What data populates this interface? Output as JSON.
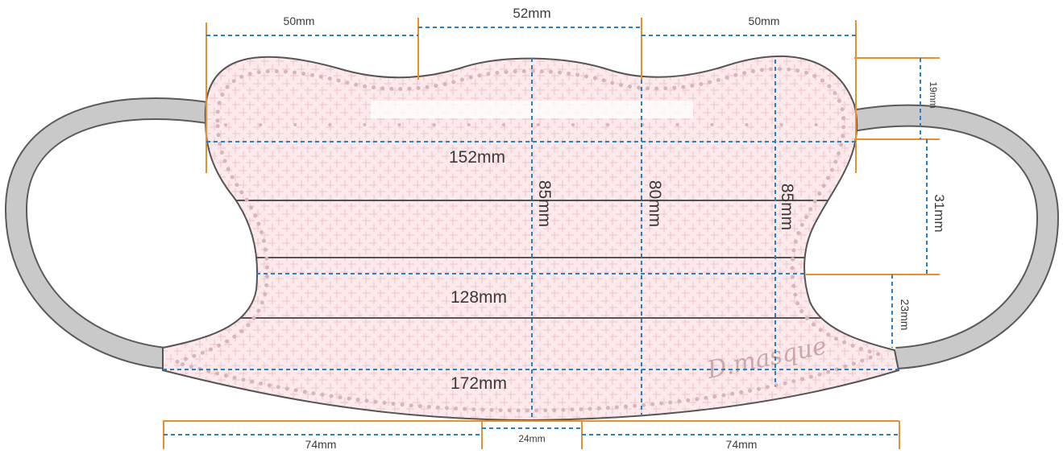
{
  "diagram": {
    "brand": "D.masque",
    "width_main": "152mm",
    "width_middle": "128mm",
    "width_bottom": "172mm",
    "height_center_left": "85mm",
    "height_center": "80mm",
    "height_center_right": "85mm",
    "top_left": "50mm",
    "top_middle": "52mm",
    "top_right": "50mm",
    "right_top": "19mm",
    "right_middle": "31mm",
    "right_bottom": "23mm",
    "bottom_left": "74mm",
    "bottom_middle": "24mm",
    "bottom_right": "74mm"
  },
  "colors": {
    "mask_fill": "#f9e4e6",
    "dots": "#d7b6bb",
    "ear_loop": "#c9c9c9",
    "outline": "#555555",
    "orange_guides": "#e8902e",
    "blue_dashed": "#2a7fc4"
  }
}
